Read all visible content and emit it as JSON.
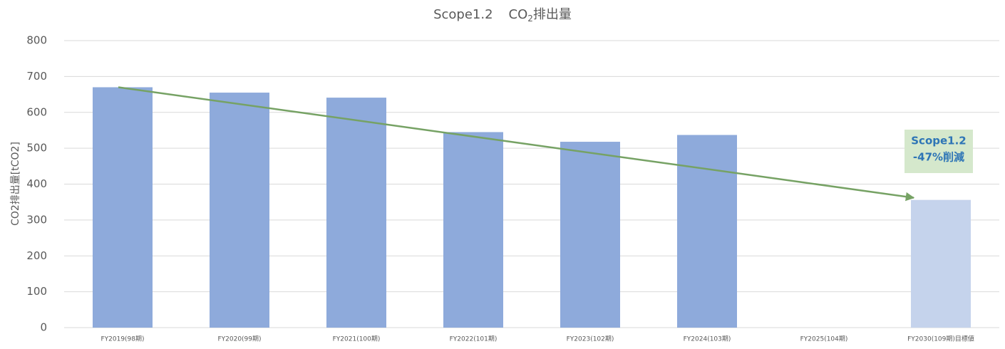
{
  "chart_data": {
    "type": "bar",
    "title": [
      "Scope1.2",
      "CO",
      "2",
      "排出量"
    ],
    "y_label": "CO2排出量[tCO2]",
    "categories": [
      "FY2019(98期)",
      "FY2020(99期)",
      "FY2021(100期)",
      "FY2022(101期)",
      "FY2023(102期)",
      "FY2024(103期)",
      "FY2025(104期)",
      "FY2030(109期)目標値"
    ],
    "values": [
      670,
      655,
      641,
      545,
      518,
      537,
      null,
      356
    ],
    "colors": [
      "#8eaadb",
      "#8eaadb",
      "#8eaadb",
      "#8eaadb",
      "#8eaadb",
      "#8eaadb",
      "#8eaadb",
      "#c5d3ec"
    ],
    "ylim": [
      0,
      800
    ],
    "yticks": [
      0,
      100,
      200,
      300,
      400,
      500,
      600,
      700,
      800
    ],
    "grid": true,
    "trend_arrow": {
      "start": 670,
      "end": 362,
      "color": "#76a264"
    },
    "annotation": {
      "lines": [
        "Scope1.2",
        "-47%削減"
      ],
      "background": "#d5e8cc",
      "color": "#2e75b6"
    }
  }
}
